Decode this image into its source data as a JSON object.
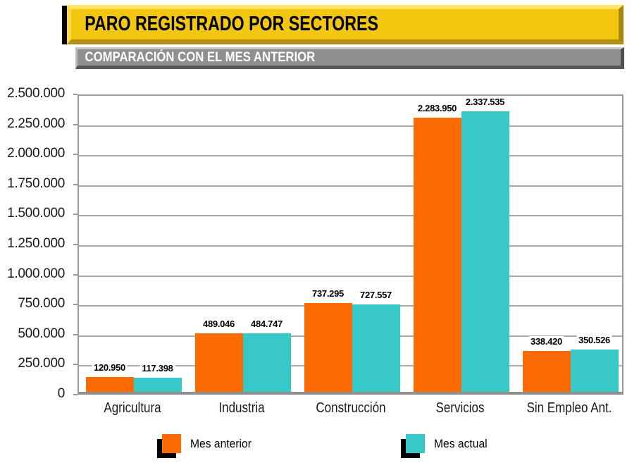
{
  "header": {
    "title": "PARO REGISTRADO POR SECTORES",
    "subtitle": "COMPARACIÓN CON EL MES ANTERIOR",
    "title_bg": "#F3C60F",
    "subtitle_bg": "#8F8F8F",
    "title_color": "#000000",
    "subtitle_color": "#FFFFFF"
  },
  "chart_data": {
    "type": "bar",
    "categories": [
      "Agricultura",
      "Industria",
      "Construcción",
      "Servicios",
      "Sin Empleo Ant."
    ],
    "series": [
      {
        "name": "Mes anterior",
        "color": "#FC6A03",
        "values": [
          120950,
          489046,
          737295,
          2283950,
          338420
        ]
      },
      {
        "name": "Mes actual",
        "color": "#38C8C8",
        "values": [
          117398,
          484747,
          727557,
          2337535,
          350526
        ]
      }
    ],
    "value_labels": [
      [
        "120.950",
        "489.046",
        "737.295",
        "2.283.950",
        "338.420"
      ],
      [
        "117.398",
        "484.747",
        "727.557",
        "2.337.535",
        "350.526"
      ]
    ],
    "ylim": [
      0,
      2500000
    ],
    "ytick_step": 250000,
    "ytick_labels": [
      "0",
      "250.000",
      "500.000",
      "750.000",
      "1.000.000",
      "1.250.000",
      "1.500.000",
      "1.750.000",
      "2.000.000",
      "2.250.000",
      "2.500.000"
    ],
    "grid": true,
    "gridline_color": "#A9A9A9",
    "legend_position": "bottom"
  },
  "legend": {
    "items": [
      {
        "label": "Mes anterior",
        "color": "#FC6A03"
      },
      {
        "label": "Mes actual",
        "color": "#38C8C8"
      }
    ]
  }
}
